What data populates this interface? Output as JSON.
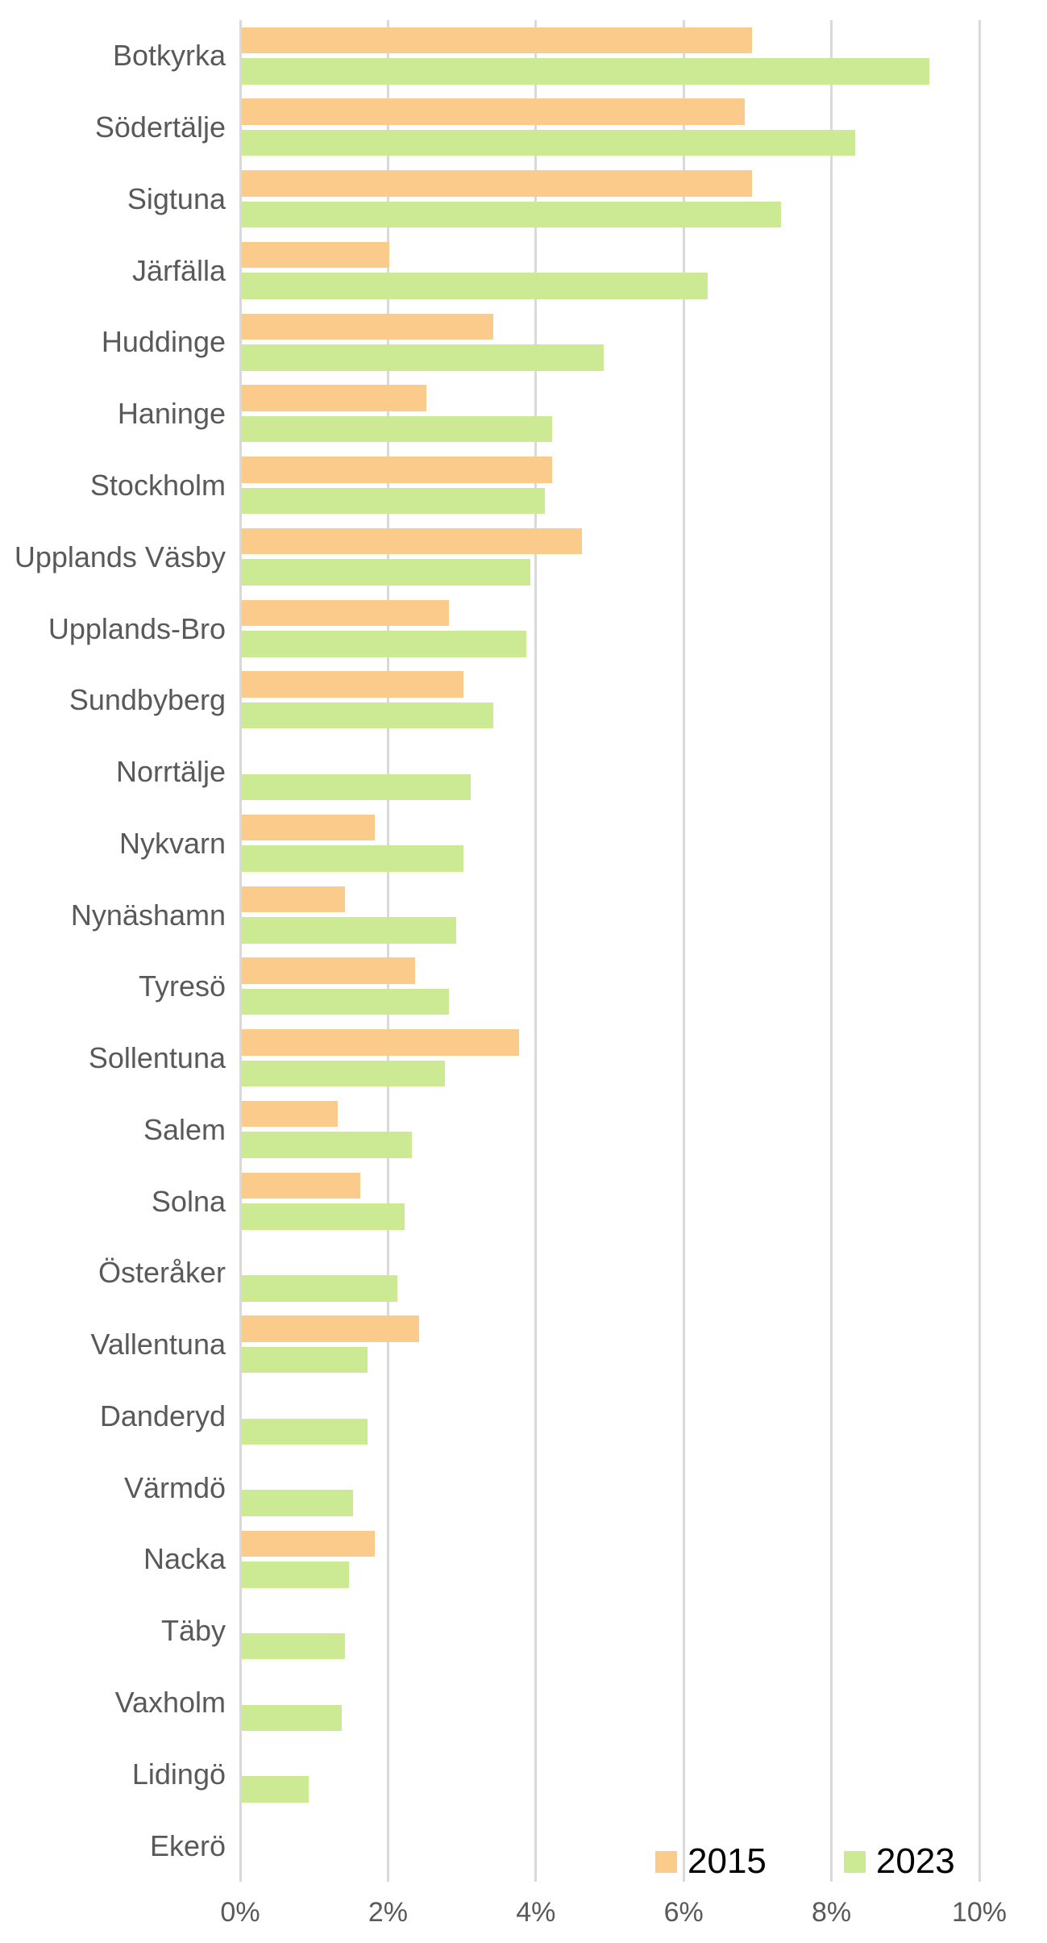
{
  "chart_data": {
    "type": "bar",
    "orientation": "horizontal",
    "categories": [
      "Botkyrka",
      "Södertälje",
      "Sigtuna",
      "Järfälla",
      "Huddinge",
      "Haninge",
      "Stockholm",
      "Upplands Väsby",
      "Upplands-Bro",
      "Sundbyberg",
      "Norrtälje",
      "Nykvarn",
      "Nynäshamn",
      "Tyresö",
      "Sollentuna",
      "Salem",
      "Solna",
      "Österåker",
      "Vallentuna",
      "Danderyd",
      "Värmdö",
      "Nacka",
      "Täby",
      "Vaxholm",
      "Lidingö",
      "Ekerö"
    ],
    "series": [
      {
        "name": "2015",
        "color": "#FBCB8C",
        "values": [
          6.9,
          6.8,
          6.9,
          2.0,
          3.4,
          2.5,
          4.2,
          4.6,
          2.8,
          3.0,
          null,
          1.8,
          1.4,
          2.35,
          3.75,
          1.3,
          1.6,
          null,
          2.4,
          null,
          null,
          1.8,
          null,
          null,
          null,
          null
        ]
      },
      {
        "name": "2023",
        "color": "#CCE994",
        "values": [
          9.3,
          8.3,
          7.3,
          6.3,
          4.9,
          4.2,
          4.1,
          3.9,
          3.85,
          3.4,
          3.1,
          3.0,
          2.9,
          2.8,
          2.75,
          2.3,
          2.2,
          2.1,
          1.7,
          1.7,
          1.5,
          1.45,
          1.4,
          1.35,
          0.9,
          null
        ]
      }
    ],
    "unit": "%",
    "xlim": [
      0,
      10
    ],
    "x_tick_labels": [
      "0%",
      "2%",
      "4%",
      "6%",
      "8%",
      "10%"
    ],
    "grid": "vertical",
    "legend_position": "bottom-right"
  },
  "legend": {
    "items": [
      {
        "label": "2015",
        "color": "#FBCB8C"
      },
      {
        "label": "2023",
        "color": "#CCE994"
      }
    ]
  },
  "colors": {
    "series_2015": "#FBCB8C",
    "series_2023": "#CCE994",
    "gridline": "#D9D9D9",
    "category_text": "#595959",
    "tick_text": "#595959",
    "legend_text": "#000000",
    "background": "#FFFFFF"
  }
}
